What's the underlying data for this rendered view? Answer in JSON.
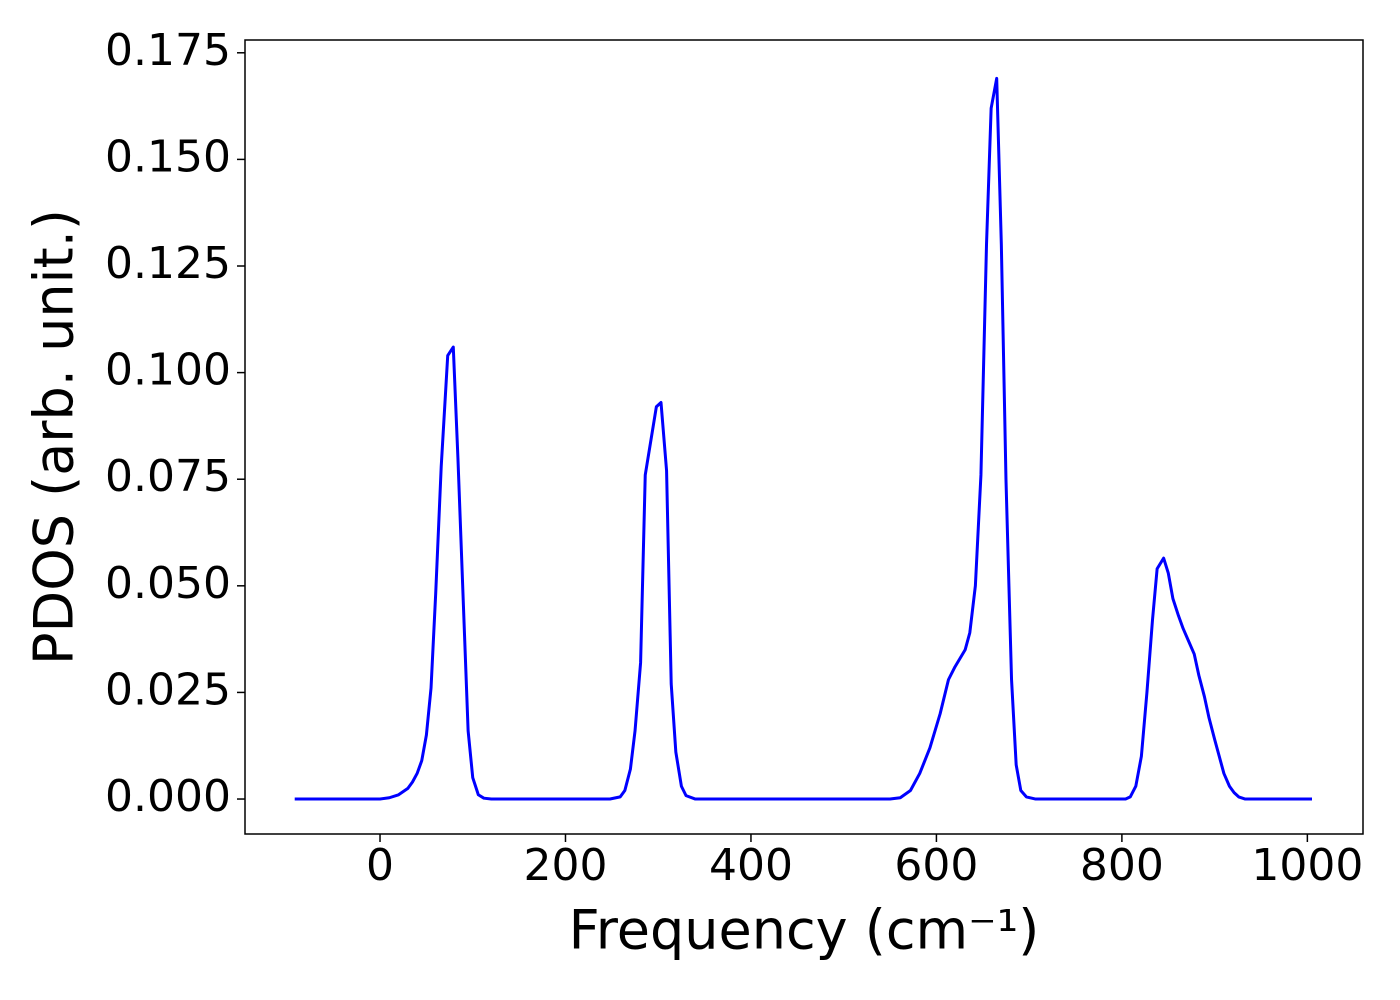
{
  "chart_data": {
    "type": "line",
    "xlabel": "Frequency (cm⁻¹)",
    "ylabel": "PDOS (arb. unit.)",
    "xlim": [
      -145.6,
      1060
    ],
    "ylim": [
      -0.0082,
      0.178
    ],
    "xticks": [
      0,
      200,
      400,
      600,
      800,
      1000
    ],
    "yticks": [
      {
        "value": 0,
        "label": "0.000"
      },
      {
        "value": 0.025,
        "label": "0.025"
      },
      {
        "value": 0.05,
        "label": "0.050"
      },
      {
        "value": 0.075,
        "label": "0.075"
      },
      {
        "value": 0.1,
        "label": "0.100"
      },
      {
        "value": 0.125,
        "label": "0.125"
      },
      {
        "value": 0.15,
        "label": "0.150"
      },
      {
        "value": 0.175,
        "label": "0.175"
      }
    ],
    "grid": false,
    "series": [
      {
        "name": "PDOS",
        "color": "#0000ff",
        "x": [
          -92,
          0,
          10,
          20,
          30,
          35,
          40,
          45,
          50,
          55,
          60,
          66,
          73,
          79,
          84,
          90,
          95,
          100,
          106,
          112,
          120,
          248,
          259,
          264,
          270,
          275,
          281,
          286,
          298,
          303,
          309,
          314,
          319,
          325,
          330,
          340,
          550,
          561,
          572,
          582,
          593,
          604,
          613,
          620,
          631,
          636,
          642,
          648,
          654,
          659,
          665,
          670,
          675,
          681,
          686,
          691,
          697,
          707,
          804,
          809,
          815,
          821,
          827,
          833,
          838,
          845,
          850,
          855,
          861,
          866,
          872,
          878,
          883,
          889,
          894,
          900,
          905,
          910,
          916,
          921,
          926,
          933,
          1005
        ],
        "values": [
          0,
          0,
          0.0003,
          0.001,
          0.0025,
          0.004,
          0.006,
          0.009,
          0.015,
          0.026,
          0.048,
          0.078,
          0.104,
          0.106,
          0.08,
          0.045,
          0.016,
          0.005,
          0.001,
          0.0002,
          0,
          0,
          0.0005,
          0.002,
          0.007,
          0.016,
          0.032,
          0.076,
          0.092,
          0.093,
          0.077,
          0.027,
          0.011,
          0.003,
          0.0008,
          0,
          0,
          0.0003,
          0.002,
          0.006,
          0.012,
          0.02,
          0.028,
          0.031,
          0.035,
          0.039,
          0.05,
          0.076,
          0.13,
          0.162,
          0.169,
          0.13,
          0.075,
          0.028,
          0.008,
          0.002,
          0.0005,
          0,
          0,
          0.0005,
          0.003,
          0.01,
          0.025,
          0.042,
          0.054,
          0.0565,
          0.053,
          0.047,
          0.043,
          0.04,
          0.037,
          0.034,
          0.029,
          0.024,
          0.019,
          0.014,
          0.01,
          0.006,
          0.003,
          0.0015,
          0.0005,
          0,
          0
        ]
      }
    ]
  }
}
